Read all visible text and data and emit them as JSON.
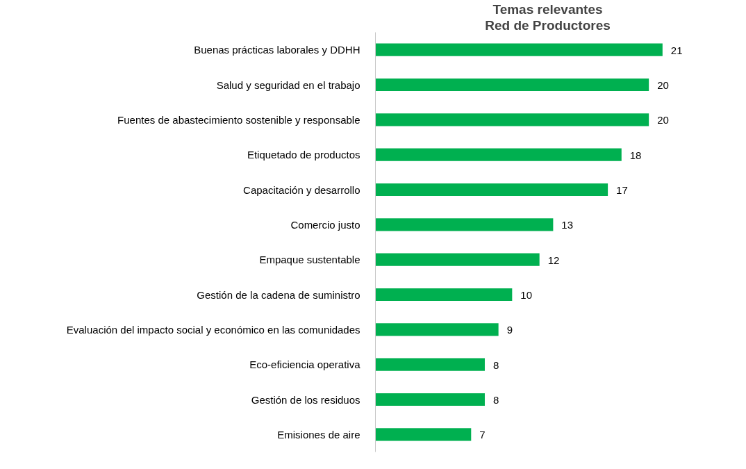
{
  "chart_data": {
    "type": "bar",
    "orientation": "horizontal",
    "title": "Temas relevantes",
    "subtitle": "Red de Productores",
    "categories": [
      "Buenas prácticas laborales y DDHH",
      "Salud y seguridad en el trabajo",
      "Fuentes de abastecimiento sostenible y responsable",
      "Etiquetado de productos",
      "Capacitación y desarrollo",
      "Comercio justo",
      "Empaque sustentable",
      "Gestión de la cadena de suministro",
      "Evaluación del impacto social y económico en las comunidades",
      "Eco-eficiencia operativa",
      "Gestión de los residuos",
      "Emisiones de aire"
    ],
    "values": [
      21,
      20,
      20,
      18,
      17,
      13,
      12,
      10,
      9,
      8,
      8,
      7
    ],
    "color": "#00b050",
    "data_labels": true,
    "grid": false
  }
}
